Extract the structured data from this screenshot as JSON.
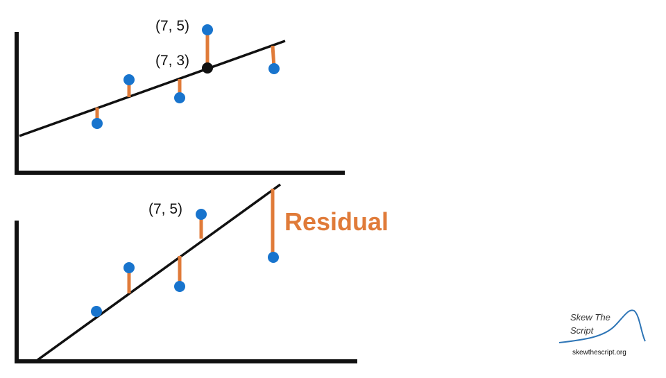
{
  "colors": {
    "point": "#1874cd",
    "residual": "#e07b39",
    "line": "#111111",
    "axis": "#111111",
    "logo_curve": "#2e75b6"
  },
  "top_panel": {
    "label_observed": "(7, 5)",
    "label_predicted": "(7, 3)"
  },
  "bottom_panel": {
    "label_observed": "(7, 5)",
    "residual_label": "Residual"
  },
  "logo": {
    "line1": "Skew The",
    "line2": "Script",
    "url": "skewthescript.org"
  }
}
